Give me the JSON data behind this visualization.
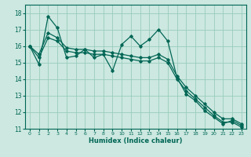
{
  "xlabel": "Humidex (Indice chaleur)",
  "bg_color": "#cce8e0",
  "grid_color": "#99ccbb",
  "line_color": "#006655",
  "xlim": [
    -0.5,
    23.5
  ],
  "ylim": [
    11,
    18.5
  ],
  "xticks": [
    0,
    1,
    2,
    3,
    4,
    5,
    6,
    7,
    8,
    9,
    10,
    11,
    12,
    13,
    14,
    15,
    16,
    17,
    18,
    19,
    20,
    21,
    22,
    23
  ],
  "yticks": [
    11,
    12,
    13,
    14,
    15,
    16,
    17,
    18
  ],
  "main_y": [
    16.0,
    14.9,
    17.8,
    17.1,
    15.3,
    15.4,
    15.8,
    15.3,
    15.5,
    14.5,
    16.1,
    16.6,
    16.0,
    16.4,
    17.0,
    16.3,
    14.1,
    13.1,
    12.7,
    12.1,
    11.7,
    11.3,
    11.5,
    11.2
  ],
  "upper_y": [
    16.0,
    15.5,
    16.8,
    16.5,
    15.9,
    15.8,
    15.8,
    15.7,
    15.7,
    15.6,
    15.5,
    15.4,
    15.3,
    15.3,
    15.5,
    15.2,
    14.2,
    13.5,
    13.0,
    12.5,
    12.0,
    11.6,
    11.6,
    11.3
  ],
  "lower_y": [
    16.0,
    15.3,
    16.5,
    16.3,
    15.7,
    15.6,
    15.6,
    15.5,
    15.5,
    15.4,
    15.3,
    15.2,
    15.1,
    15.1,
    15.3,
    15.0,
    14.0,
    13.3,
    12.8,
    12.3,
    11.8,
    11.4,
    11.4,
    11.1
  ]
}
